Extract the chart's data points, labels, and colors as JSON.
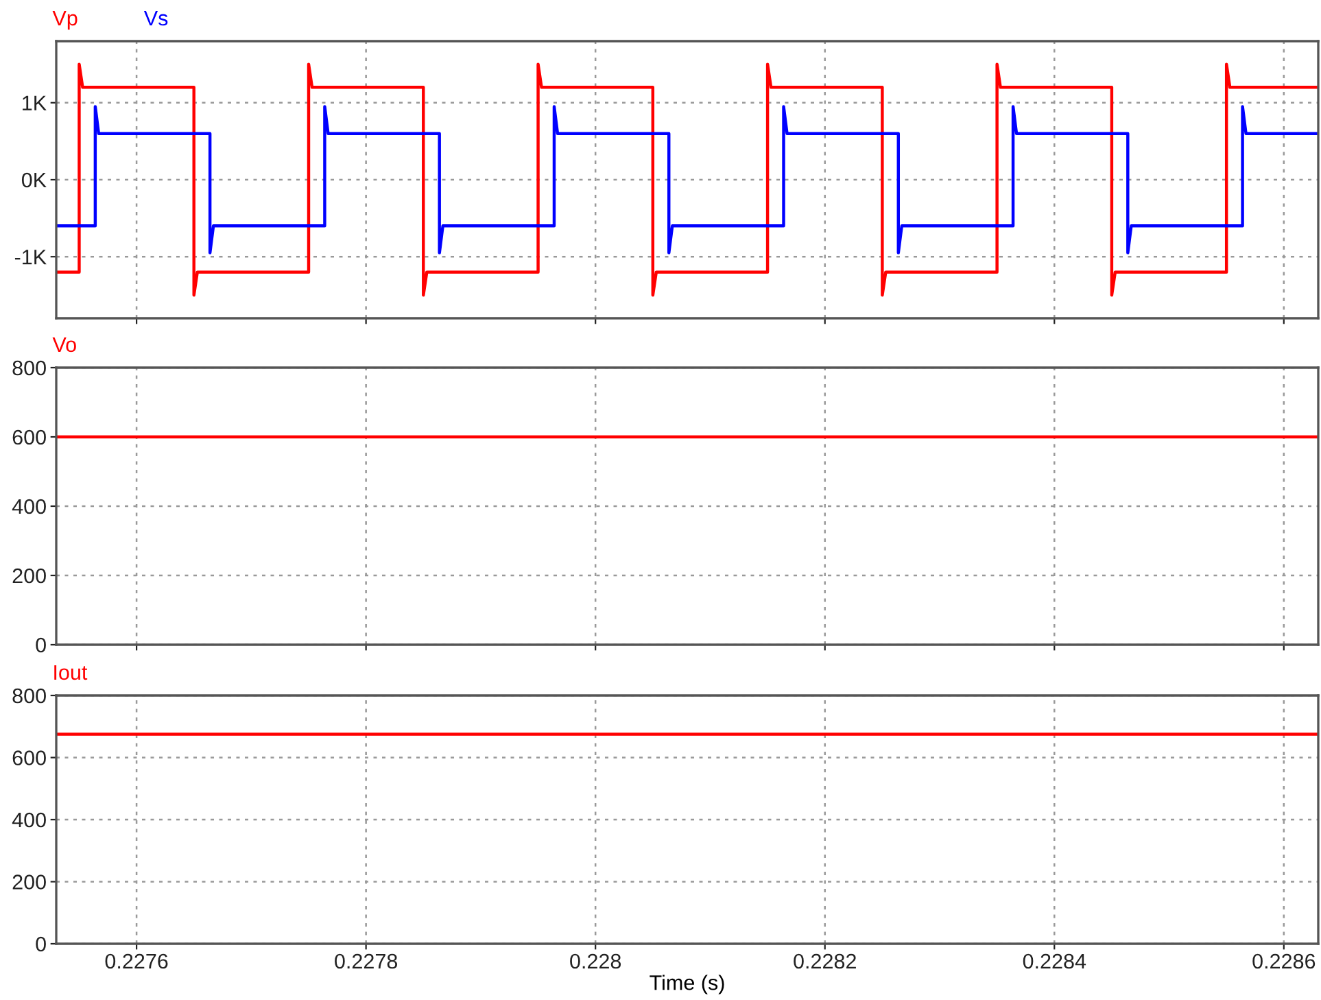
{
  "chart_data": [
    {
      "type": "line",
      "xlim": [
        0.22753,
        0.22863
      ],
      "xticks": [
        0.2276,
        0.2278,
        0.228,
        0.2282,
        0.2284,
        0.2286
      ],
      "ylim": [
        -1800,
        1800
      ],
      "yticks": [
        {
          "value": -1000,
          "label": "-1K"
        },
        {
          "value": 0,
          "label": "0K"
        },
        {
          "value": 1000,
          "label": "1K"
        }
      ],
      "grid": true,
      "legend": "top left",
      "tick_labels": "y",
      "line_style": "solid",
      "series": [
        {
          "name": "Vp",
          "color": "#ff0000",
          "x": [
            0.22753,
            0.22755,
            0.22755,
            0.227553,
            0.22765,
            0.22765,
            0.227653,
            0.22775,
            0.22775,
            0.227753,
            0.22785,
            0.22785,
            0.227853,
            0.22795,
            0.22795,
            0.227953,
            0.22805,
            0.22805,
            0.228053,
            0.22815,
            0.22815,
            0.228153,
            0.22825,
            0.22825,
            0.228253,
            0.22835,
            0.22835,
            0.228353,
            0.22845,
            0.22845,
            0.228453,
            0.22855,
            0.22855,
            0.228553,
            0.22863
          ],
          "values": [
            -1200,
            -1200,
            1500,
            1200,
            1200,
            -1500,
            -1200,
            -1200,
            1500,
            1200,
            1200,
            -1500,
            -1200,
            -1200,
            1500,
            1200,
            1200,
            -1500,
            -1200,
            -1200,
            1500,
            1200,
            1200,
            -1500,
            -1200,
            -1200,
            1500,
            1200,
            1200,
            -1500,
            -1200,
            -1200,
            1500,
            1200,
            1200
          ]
        },
        {
          "name": "Vs",
          "color": "#0000ff",
          "x": [
            0.22753,
            0.227564,
            0.227564,
            0.227567,
            0.227664,
            0.227664,
            0.227667,
            0.227764,
            0.227764,
            0.227767,
            0.227864,
            0.227864,
            0.227867,
            0.227964,
            0.227964,
            0.227967,
            0.228064,
            0.228064,
            0.228067,
            0.228164,
            0.228164,
            0.228167,
            0.228264,
            0.228264,
            0.228267,
            0.228364,
            0.228364,
            0.228367,
            0.228464,
            0.228464,
            0.228467,
            0.228564,
            0.228564,
            0.228567,
            0.22863
          ],
          "values": [
            -600,
            -600,
            950,
            600,
            600,
            -950,
            -600,
            -600,
            950,
            600,
            600,
            -950,
            -600,
            -600,
            950,
            600,
            600,
            -950,
            -600,
            -600,
            950,
            600,
            600,
            -950,
            -600,
            -600,
            950,
            600,
            600,
            -950,
            -600,
            -600,
            950,
            600,
            600
          ]
        }
      ]
    },
    {
      "type": "line",
      "xlim": [
        0.22753,
        0.22863
      ],
      "xticks": [
        0.2276,
        0.2278,
        0.228,
        0.2282,
        0.2284,
        0.2286
      ],
      "ylim": [
        0,
        800
      ],
      "yticks": [
        0,
        200,
        400,
        600,
        800
      ],
      "grid": true,
      "legend": "top left",
      "tick_labels": "y",
      "line_style": "solid",
      "series": [
        {
          "name": "Vo",
          "color": "#ff0000",
          "x": [
            0.22753,
            0.22863
          ],
          "values": [
            600,
            600
          ]
        }
      ]
    },
    {
      "type": "line",
      "xlim": [
        0.22753,
        0.22863
      ],
      "xticks": [
        0.2276,
        0.2278,
        0.228,
        0.2282,
        0.2284,
        0.2286
      ],
      "ylim": [
        0,
        800
      ],
      "yticks": [
        0,
        200,
        400,
        600,
        800
      ],
      "xlabel": "Time (s)",
      "grid": true,
      "legend": "top left",
      "line_style": "solid",
      "series": [
        {
          "name": "Iout",
          "color": "#ff0000",
          "x": [
            0.22753,
            0.22863
          ],
          "values": [
            675,
            675
          ]
        }
      ]
    }
  ]
}
